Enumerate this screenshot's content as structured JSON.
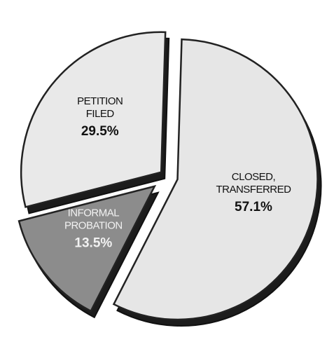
{
  "chart_data": {
    "type": "pie",
    "categories": [
      "CLOSED, TRANSFERRED",
      "INFORMAL PROBATION",
      "PETITION FILED"
    ],
    "values": [
      57.1,
      13.5,
      29.5
    ],
    "value_labels": [
      "57.1%",
      "13.5%",
      "29.5%"
    ],
    "colors": [
      "#e6e6e6",
      "#8c8c8c",
      "#e9e9e9"
    ]
  }
}
